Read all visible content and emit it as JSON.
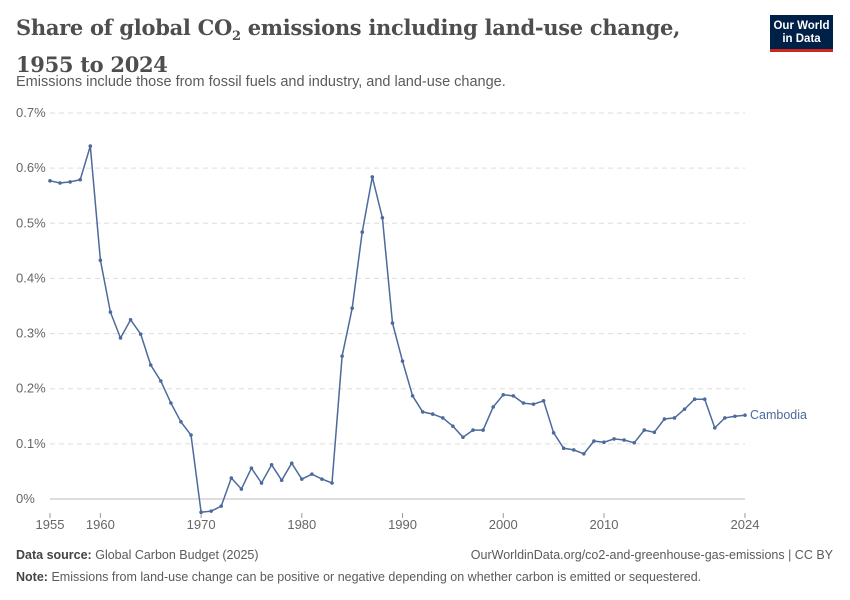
{
  "header": {
    "title_main": "Share of global CO",
    "title_sub": "2",
    "title_rest": " emissions including land-use change, 1955 to 2024",
    "subtitle": "Emissions include those from fossil fuels and industry, and land-use change.",
    "logo_line1": "Our World",
    "logo_line2": "in Data"
  },
  "footer": {
    "source_label": "Data source:",
    "source": "Global Carbon Budget (2025)",
    "url": "OurWorldinData.org/co2-and-greenhouse-gas-emissions | CC BY",
    "note_label": "Note:",
    "note": "Emissions from land-use change can be positive or negative depending on whether carbon is emitted or sequestered."
  },
  "colors": {
    "line": "#4c6a9c",
    "grid": "#dddddd",
    "axis": "#bbbbbb",
    "logo": "#002147",
    "logo_accent": "#ce261e"
  },
  "chart_data": {
    "type": "line",
    "title": "Share of global CO₂ emissions including land-use change, 1955 to 2024",
    "xlim": [
      1955,
      2024
    ],
    "ylim": [
      0,
      0.7
    ],
    "yticks": [
      0,
      0.1,
      0.2,
      0.3,
      0.4,
      0.5,
      0.6,
      0.7
    ],
    "ytick_labels": [
      "0%",
      "0.1%",
      "0.2%",
      "0.3%",
      "0.4%",
      "0.5%",
      "0.6%",
      "0.7%"
    ],
    "xticks": [
      1955,
      1960,
      1970,
      1980,
      1990,
      2000,
      2010,
      2024
    ],
    "xtick_labels": [
      "1955",
      "1960",
      "1970",
      "1980",
      "1990",
      "2000",
      "2010",
      "2024"
    ],
    "grid": "horizontal dashed",
    "series": [
      {
        "name": "Cambodia",
        "x": [
          1955,
          1956,
          1957,
          1958,
          1959,
          1960,
          1961,
          1962,
          1963,
          1964,
          1965,
          1966,
          1967,
          1968,
          1969,
          1970,
          1971,
          1972,
          1973,
          1974,
          1975,
          1976,
          1977,
          1978,
          1979,
          1980,
          1981,
          1982,
          1983,
          1984,
          1985,
          1986,
          1987,
          1988,
          1989,
          1990,
          1991,
          1992,
          1993,
          1994,
          1995,
          1996,
          1997,
          1998,
          1999,
          2000,
          2001,
          2002,
          2003,
          2004,
          2005,
          2006,
          2007,
          2008,
          2009,
          2010,
          2011,
          2012,
          2013,
          2014,
          2015,
          2016,
          2017,
          2018,
          2019,
          2020,
          2021,
          2022,
          2023,
          2024
        ],
        "values": [
          0.577,
          0.573,
          0.575,
          0.579,
          0.64,
          0.433,
          0.339,
          0.292,
          0.325,
          0.299,
          0.243,
          0.214,
          0.174,
          0.14,
          0.116,
          -0.024,
          -0.022,
          -0.013,
          0.038,
          0.018,
          0.056,
          0.029,
          0.062,
          0.034,
          0.065,
          0.036,
          0.045,
          0.036,
          0.029,
          0.259,
          0.346,
          0.484,
          0.584,
          0.51,
          0.319,
          0.25,
          0.187,
          0.158,
          0.154,
          0.147,
          0.132,
          0.112,
          0.125,
          0.125,
          0.167,
          0.189,
          0.187,
          0.174,
          0.172,
          0.178,
          0.12,
          0.092,
          0.089,
          0.082,
          0.105,
          0.103,
          0.109,
          0.107,
          0.102,
          0.125,
          0.121,
          0.145,
          0.147,
          0.163,
          0.181,
          0.181,
          0.129,
          0.147,
          0.15,
          0.152
        ]
      }
    ]
  }
}
